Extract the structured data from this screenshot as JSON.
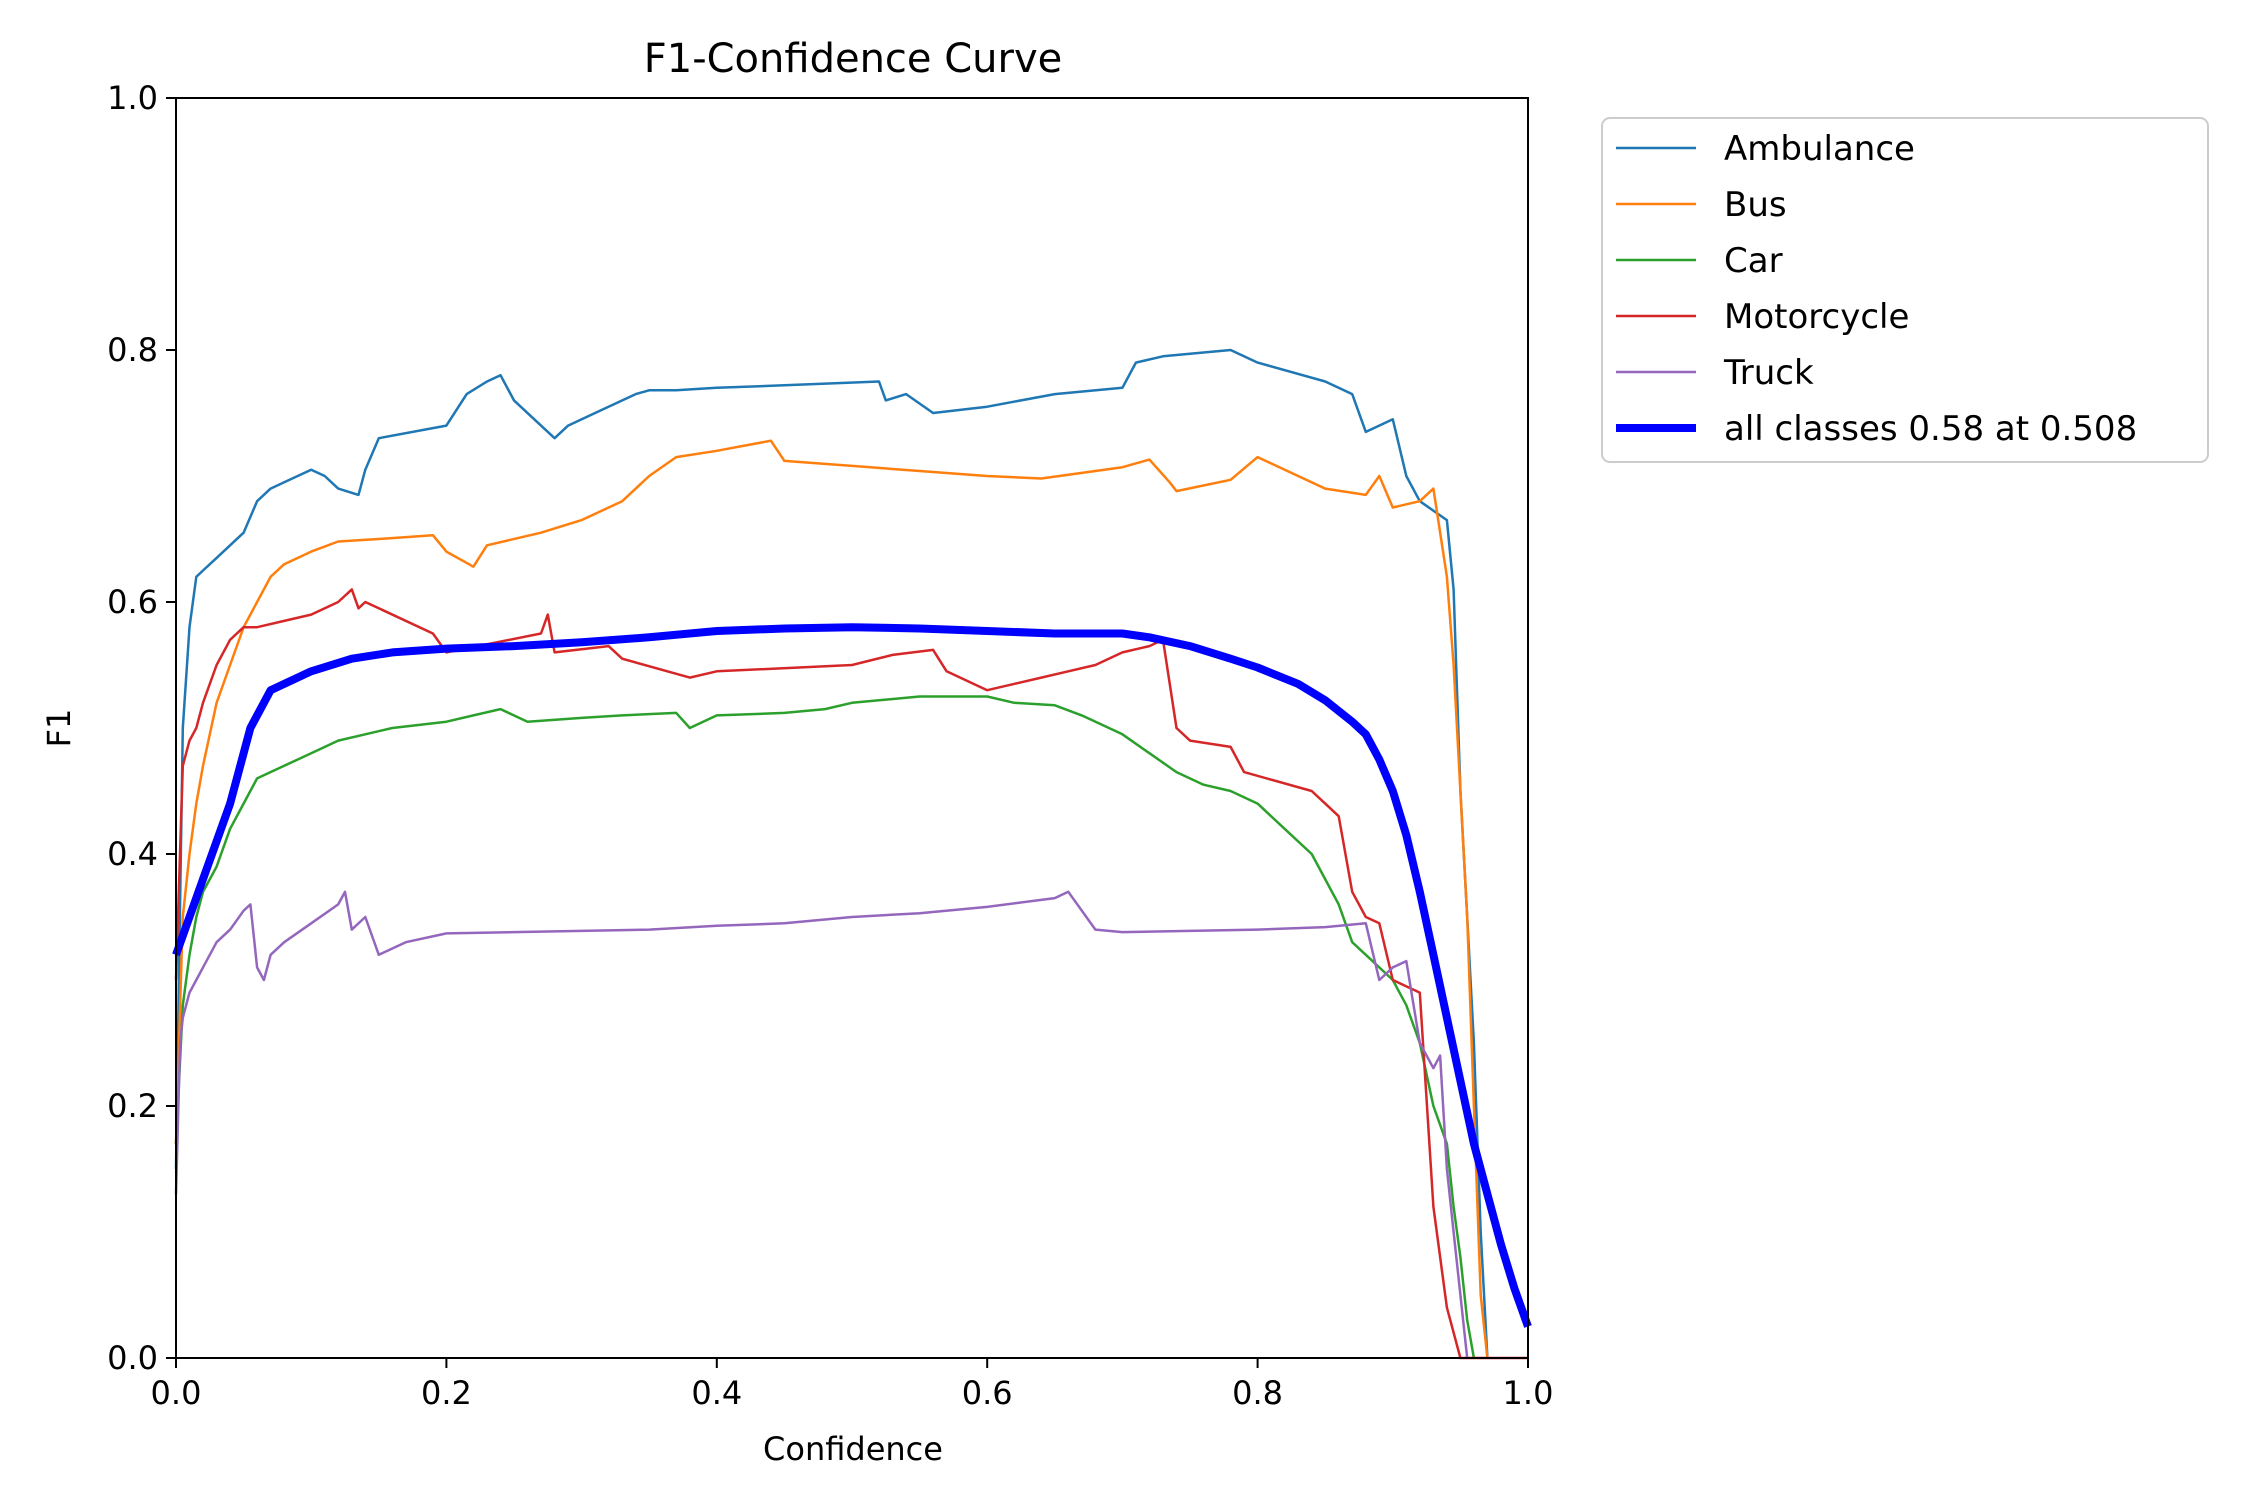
{
  "chart_data": {
    "type": "line",
    "title": "F1-Confidence Curve",
    "xlabel": "Confidence",
    "ylabel": "F1",
    "xlim": [
      0,
      1
    ],
    "ylim": [
      0,
      1
    ],
    "xticks": [
      "0.0",
      "0.2",
      "0.4",
      "0.6",
      "0.8",
      "1.0"
    ],
    "yticks": [
      "0.0",
      "0.2",
      "0.4",
      "0.6",
      "0.8",
      "1.0"
    ],
    "grid": false,
    "legend_position": "outside-top-right",
    "series": [
      {
        "name": "Ambulance",
        "color": "#1f77b4",
        "linewidth": "thin",
        "x": [
          0.0,
          0.005,
          0.01,
          0.015,
          0.02,
          0.03,
          0.04,
          0.05,
          0.06,
          0.07,
          0.08,
          0.1,
          0.11,
          0.12,
          0.135,
          0.14,
          0.15,
          0.2,
          0.215,
          0.23,
          0.24,
          0.25,
          0.27,
          0.28,
          0.29,
          0.31,
          0.34,
          0.35,
          0.37,
          0.4,
          0.45,
          0.52,
          0.525,
          0.54,
          0.56,
          0.6,
          0.65,
          0.7,
          0.71,
          0.73,
          0.78,
          0.8,
          0.85,
          0.87,
          0.88,
          0.9,
          0.91,
          0.92,
          0.94,
          0.945,
          0.95,
          0.955,
          0.96,
          0.965,
          0.97
        ],
        "y": [
          0.15,
          0.5,
          0.58,
          0.62,
          0.625,
          0.635,
          0.645,
          0.655,
          0.68,
          0.69,
          0.695,
          0.705,
          0.7,
          0.69,
          0.685,
          0.705,
          0.73,
          0.74,
          0.765,
          0.775,
          0.78,
          0.76,
          0.74,
          0.73,
          0.74,
          0.75,
          0.765,
          0.768,
          0.768,
          0.77,
          0.772,
          0.775,
          0.76,
          0.765,
          0.75,
          0.755,
          0.765,
          0.77,
          0.79,
          0.795,
          0.8,
          0.79,
          0.775,
          0.765,
          0.735,
          0.745,
          0.7,
          0.68,
          0.665,
          0.61,
          0.45,
          0.35,
          0.25,
          0.1,
          0.0
        ]
      },
      {
        "name": "Bus",
        "color": "#ff7f0e",
        "linewidth": "thin",
        "x": [
          0.0,
          0.005,
          0.01,
          0.015,
          0.02,
          0.03,
          0.04,
          0.05,
          0.06,
          0.07,
          0.08,
          0.1,
          0.12,
          0.15,
          0.19,
          0.2,
          0.22,
          0.23,
          0.27,
          0.3,
          0.33,
          0.35,
          0.37,
          0.4,
          0.44,
          0.45,
          0.5,
          0.55,
          0.6,
          0.64,
          0.7,
          0.72,
          0.735,
          0.74,
          0.78,
          0.8,
          0.85,
          0.88,
          0.89,
          0.9,
          0.92,
          0.93,
          0.94,
          0.945,
          0.95,
          0.955,
          0.96,
          0.965,
          0.97
        ],
        "y": [
          0.17,
          0.35,
          0.4,
          0.44,
          0.47,
          0.52,
          0.55,
          0.58,
          0.6,
          0.62,
          0.63,
          0.64,
          0.648,
          0.65,
          0.653,
          0.64,
          0.628,
          0.645,
          0.655,
          0.665,
          0.68,
          0.7,
          0.715,
          0.72,
          0.728,
          0.712,
          0.708,
          0.704,
          0.7,
          0.698,
          0.707,
          0.713,
          0.695,
          0.688,
          0.697,
          0.715,
          0.69,
          0.685,
          0.7,
          0.675,
          0.68,
          0.69,
          0.62,
          0.55,
          0.45,
          0.35,
          0.2,
          0.05,
          0.0
        ]
      },
      {
        "name": "Car",
        "color": "#2ca02c",
        "linewidth": "thin",
        "x": [
          0.0,
          0.005,
          0.01,
          0.015,
          0.02,
          0.03,
          0.04,
          0.05,
          0.06,
          0.08,
          0.1,
          0.12,
          0.14,
          0.16,
          0.2,
          0.22,
          0.24,
          0.26,
          0.3,
          0.33,
          0.37,
          0.38,
          0.4,
          0.45,
          0.48,
          0.5,
          0.55,
          0.6,
          0.62,
          0.65,
          0.67,
          0.7,
          0.72,
          0.74,
          0.76,
          0.78,
          0.8,
          0.82,
          0.84,
          0.86,
          0.87,
          0.88,
          0.9,
          0.91,
          0.92,
          0.93,
          0.94,
          0.945,
          0.95,
          0.955,
          0.96
        ],
        "y": [
          0.17,
          0.28,
          0.32,
          0.35,
          0.37,
          0.39,
          0.42,
          0.44,
          0.46,
          0.47,
          0.48,
          0.49,
          0.495,
          0.5,
          0.505,
          0.51,
          0.515,
          0.505,
          0.508,
          0.51,
          0.512,
          0.5,
          0.51,
          0.512,
          0.515,
          0.52,
          0.525,
          0.525,
          0.52,
          0.518,
          0.51,
          0.495,
          0.48,
          0.465,
          0.455,
          0.45,
          0.44,
          0.42,
          0.4,
          0.36,
          0.33,
          0.32,
          0.3,
          0.28,
          0.25,
          0.2,
          0.17,
          0.12,
          0.08,
          0.03,
          0.0
        ]
      },
      {
        "name": "Motorcycle",
        "color": "#d62728",
        "linewidth": "thin",
        "x": [
          0.0,
          0.005,
          0.01,
          0.015,
          0.02,
          0.03,
          0.04,
          0.05,
          0.06,
          0.08,
          0.1,
          0.12,
          0.13,
          0.135,
          0.14,
          0.19,
          0.2,
          0.27,
          0.275,
          0.28,
          0.32,
          0.33,
          0.38,
          0.4,
          0.5,
          0.53,
          0.56,
          0.57,
          0.6,
          0.64,
          0.66,
          0.68,
          0.7,
          0.72,
          0.73,
          0.74,
          0.75,
          0.78,
          0.79,
          0.84,
          0.85,
          0.86,
          0.87,
          0.88,
          0.89,
          0.9,
          0.92,
          0.93,
          0.94,
          0.95,
          0.96,
          1.0
        ],
        "y": [
          0.3,
          0.47,
          0.49,
          0.5,
          0.52,
          0.55,
          0.57,
          0.58,
          0.58,
          0.585,
          0.59,
          0.6,
          0.61,
          0.595,
          0.6,
          0.575,
          0.56,
          0.575,
          0.59,
          0.56,
          0.565,
          0.555,
          0.54,
          0.545,
          0.55,
          0.558,
          0.562,
          0.545,
          0.53,
          0.54,
          0.545,
          0.55,
          0.56,
          0.565,
          0.57,
          0.5,
          0.49,
          0.485,
          0.465,
          0.45,
          0.44,
          0.43,
          0.37,
          0.35,
          0.345,
          0.3,
          0.29,
          0.12,
          0.04,
          0.0,
          0.0,
          0.0
        ]
      },
      {
        "name": "Truck",
        "color": "#9467bd",
        "linewidth": "thin",
        "x": [
          0.0,
          0.003,
          0.005,
          0.01,
          0.015,
          0.02,
          0.025,
          0.03,
          0.04,
          0.05,
          0.055,
          0.06,
          0.065,
          0.07,
          0.08,
          0.1,
          0.12,
          0.125,
          0.13,
          0.14,
          0.15,
          0.17,
          0.2,
          0.25,
          0.3,
          0.35,
          0.4,
          0.45,
          0.5,
          0.55,
          0.6,
          0.65,
          0.66,
          0.68,
          0.7,
          0.75,
          0.8,
          0.85,
          0.88,
          0.89,
          0.9,
          0.91,
          0.92,
          0.93,
          0.935,
          0.94,
          0.945,
          0.95,
          0.955
        ],
        "y": [
          0.13,
          0.25,
          0.27,
          0.29,
          0.3,
          0.31,
          0.32,
          0.33,
          0.34,
          0.355,
          0.36,
          0.31,
          0.3,
          0.32,
          0.33,
          0.345,
          0.36,
          0.37,
          0.34,
          0.35,
          0.32,
          0.33,
          0.337,
          0.338,
          0.339,
          0.34,
          0.343,
          0.345,
          0.35,
          0.353,
          0.358,
          0.365,
          0.37,
          0.34,
          0.338,
          0.339,
          0.34,
          0.342,
          0.345,
          0.3,
          0.31,
          0.315,
          0.25,
          0.23,
          0.24,
          0.15,
          0.1,
          0.05,
          0.0
        ]
      },
      {
        "name": "all classes 0.58 at 0.508",
        "color": "#0000ff",
        "linewidth": "thick",
        "x": [
          0.0,
          0.02,
          0.04,
          0.055,
          0.07,
          0.1,
          0.13,
          0.16,
          0.2,
          0.25,
          0.3,
          0.35,
          0.4,
          0.45,
          0.5,
          0.55,
          0.6,
          0.65,
          0.7,
          0.72,
          0.75,
          0.78,
          0.8,
          0.83,
          0.85,
          0.87,
          0.88,
          0.89,
          0.9,
          0.91,
          0.92,
          0.93,
          0.94,
          0.95,
          0.96,
          0.97,
          0.98,
          0.99,
          1.0
        ],
        "y": [
          0.32,
          0.38,
          0.44,
          0.5,
          0.53,
          0.545,
          0.555,
          0.56,
          0.563,
          0.565,
          0.568,
          0.572,
          0.577,
          0.579,
          0.58,
          0.579,
          0.577,
          0.575,
          0.575,
          0.572,
          0.565,
          0.555,
          0.548,
          0.535,
          0.522,
          0.505,
          0.495,
          0.475,
          0.45,
          0.415,
          0.37,
          0.32,
          0.27,
          0.22,
          0.17,
          0.13,
          0.09,
          0.055,
          0.025
        ]
      }
    ]
  }
}
